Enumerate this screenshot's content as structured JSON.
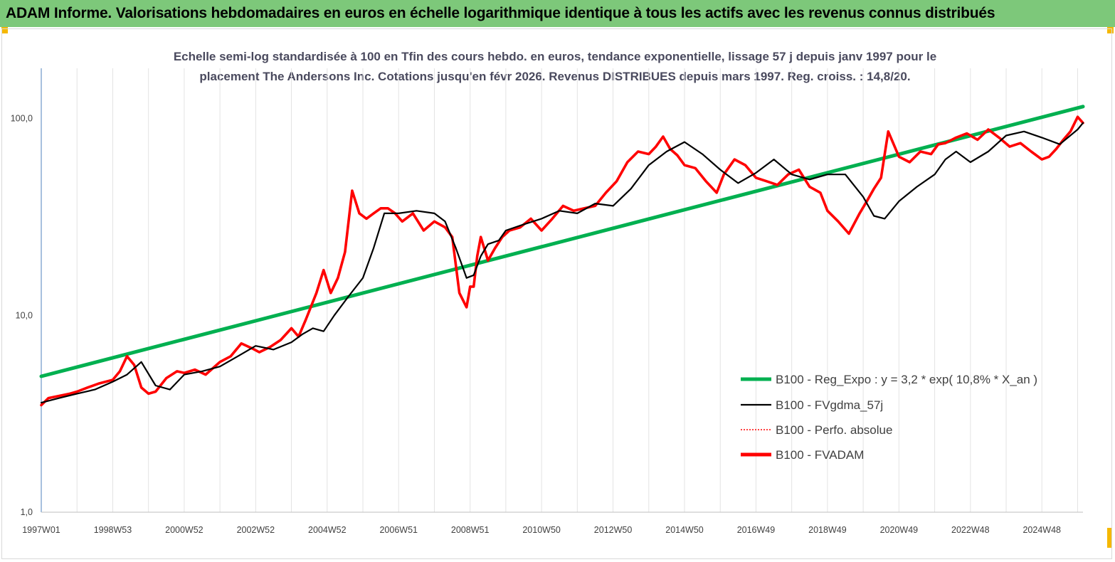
{
  "banner": {
    "title": "ADAM Informe. Valorisations hebdomadaires en euros en échelle logarithmique identique à tous les actifs avec les revenus connus distribués"
  },
  "colors": {
    "banner_bg": "#7dc87a",
    "corner_accent": "#f5b800"
  },
  "chart_data": {
    "type": "line",
    "title": "Echelle semi-log standardisée à 100 en Tfin des cours hebdo. en euros, tendance exponentielle, lissage 57 j depuis janv 1997 pour le",
    "subtitle": "placement The Andersons Inc. Cotations jusqu'en févr 2026.  Revenus DISTRIBUES depuis mars 1997. Reg. croiss. : 14,8/20.",
    "y_scale": "log",
    "ylim": [
      1,
      180
    ],
    "y_ticks": [
      "1,0",
      "10,0",
      "100,0"
    ],
    "x_range": [
      1997.0,
      2026.15
    ],
    "x_tick_labels": [
      "1997W01",
      "1998W53",
      "2000W52",
      "2002W52",
      "2004W52",
      "2006W51",
      "2008W51",
      "2010W50",
      "2012W50",
      "2014W50",
      "2016W49",
      "2018W49",
      "2020W49",
      "2022W48",
      "2024W48"
    ],
    "x_tick_positions": [
      1997.0,
      1999.0,
      2001.0,
      2003.0,
      2005.0,
      2007.0,
      2009.0,
      2011.0,
      2013.0,
      2015.0,
      2017.0,
      2019.0,
      2021.0,
      2023.0,
      2025.0
    ],
    "grid": "vertical",
    "legend_position": "bottom-right",
    "series": [
      {
        "name": "B100 - Reg_Expo : y = 3,2 * exp( 10,8% *  X_an )",
        "color": "#00b050",
        "style": "solid-thick",
        "x": [
          1997.0,
          2026.15
        ],
        "y": [
          4.9,
          115
        ]
      },
      {
        "name": "B100 - FVgdma_57j",
        "color": "#000000",
        "style": "solid-thin",
        "x": [
          1997.0,
          1997.5,
          1998.0,
          1998.5,
          1999.0,
          1999.4,
          1999.8,
          2000.2,
          2000.6,
          2001.0,
          2001.5,
          2002.0,
          2002.5,
          2003.0,
          2003.5,
          2004.0,
          2004.3,
          2004.6,
          2004.9,
          2005.2,
          2005.6,
          2006.0,
          2006.3,
          2006.6,
          2007.0,
          2007.5,
          2008.0,
          2008.3,
          2008.6,
          2008.9,
          2009.1,
          2009.3,
          2009.5,
          2009.8,
          2010.0,
          2010.5,
          2011.0,
          2011.5,
          2012.0,
          2012.5,
          2013.0,
          2013.5,
          2014.0,
          2014.5,
          2015.0,
          2015.5,
          2016.0,
          2016.5,
          2017.0,
          2017.5,
          2018.0,
          2018.5,
          2019.0,
          2019.5,
          2020.0,
          2020.3,
          2020.6,
          2021.0,
          2021.5,
          2022.0,
          2022.3,
          2022.6,
          2023.0,
          2023.5,
          2024.0,
          2024.5,
          2025.0,
          2025.5,
          2026.0,
          2026.15
        ],
        "y": [
          3.6,
          3.8,
          4.0,
          4.2,
          4.6,
          5.0,
          5.8,
          4.4,
          4.2,
          5.0,
          5.2,
          5.5,
          6.2,
          7.0,
          6.7,
          7.3,
          8.0,
          8.6,
          8.3,
          10.0,
          12.5,
          15.5,
          22,
          33,
          33,
          34,
          33,
          30,
          22,
          15.5,
          16,
          20,
          23,
          24,
          27,
          29,
          31,
          34,
          33,
          37,
          36,
          44,
          58,
          68,
          76,
          66,
          55,
          47,
          53,
          62,
          52,
          49,
          52,
          52,
          40,
          32,
          31,
          38,
          45,
          52,
          62,
          68,
          60,
          68,
          82,
          86,
          80,
          74,
          88,
          95
        ]
      },
      {
        "name": "B100 - Perfo. absolue",
        "color": "#ff0000",
        "style": "dotted",
        "x": [],
        "y": []
      },
      {
        "name": "B100 - FVADAM",
        "color": "#ff0000",
        "style": "solid-thick",
        "x": [
          1997.0,
          1997.2,
          1997.5,
          1997.8,
          1998.0,
          1998.3,
          1998.6,
          1999.0,
          1999.2,
          1999.4,
          1999.6,
          1999.8,
          2000.0,
          2000.2,
          2000.5,
          2000.8,
          2001.0,
          2001.3,
          2001.6,
          2002.0,
          2002.3,
          2002.6,
          2002.9,
          2003.1,
          2003.4,
          2003.7,
          2004.0,
          2004.2,
          2004.4,
          2004.7,
          2004.9,
          2005.1,
          2005.3,
          2005.5,
          2005.7,
          2005.9,
          2006.1,
          2006.3,
          2006.5,
          2006.7,
          2006.9,
          2007.1,
          2007.4,
          2007.7,
          2008.0,
          2008.3,
          2008.5,
          2008.7,
          2008.9,
          2009.0,
          2009.1,
          2009.2,
          2009.3,
          2009.5,
          2009.7,
          2009.9,
          2010.1,
          2010.4,
          2010.7,
          2011.0,
          2011.3,
          2011.6,
          2011.9,
          2012.2,
          2012.5,
          2012.8,
          2013.1,
          2013.4,
          2013.7,
          2014.0,
          2014.2,
          2014.4,
          2014.6,
          2014.8,
          2015.0,
          2015.3,
          2015.6,
          2015.9,
          2016.1,
          2016.4,
          2016.7,
          2017.0,
          2017.3,
          2017.6,
          2017.9,
          2018.2,
          2018.5,
          2018.8,
          2019.0,
          2019.3,
          2019.6,
          2019.9,
          2020.1,
          2020.3,
          2020.5,
          2020.7,
          2021.0,
          2021.3,
          2021.6,
          2021.9,
          2022.1,
          2022.3,
          2022.6,
          2022.9,
          2023.2,
          2023.5,
          2023.8,
          2024.1,
          2024.4,
          2024.7,
          2025.0,
          2025.2,
          2025.4,
          2025.6,
          2025.8,
          2026.0,
          2026.15
        ],
        "y": [
          3.5,
          3.8,
          3.9,
          4.0,
          4.1,
          4.3,
          4.5,
          4.7,
          5.2,
          6.2,
          5.6,
          4.3,
          4.0,
          4.1,
          4.8,
          5.2,
          5.1,
          5.3,
          5.0,
          5.8,
          6.2,
          7.2,
          6.8,
          6.5,
          6.9,
          7.5,
          8.6,
          7.8,
          9.5,
          13,
          17,
          13,
          15.5,
          21,
          43,
          33,
          31,
          33,
          35,
          35,
          33,
          30,
          33,
          27,
          30,
          28,
          25,
          13,
          11,
          14,
          14,
          20,
          25,
          19,
          22,
          25,
          27,
          28,
          31,
          27,
          31,
          36,
          34,
          35,
          36,
          42,
          48,
          60,
          68,
          66,
          72,
          81,
          70,
          65,
          58,
          56,
          48,
          42,
          52,
          62,
          58,
          50,
          48,
          46,
          52,
          55,
          45,
          42,
          34,
          30,
          26,
          33,
          38,
          44,
          50,
          86,
          64,
          60,
          68,
          66,
          74,
          75,
          80,
          84,
          78,
          88,
          80,
          72,
          75,
          68,
          62,
          64,
          70,
          78,
          86,
          102,
          95
        ]
      }
    ]
  },
  "legend": {
    "items": [
      "B100 - Reg_Expo : y = 3,2 * exp( 10,8% *  X_an )",
      "B100 - FVgdma_57j",
      "B100 - Perfo. absolue",
      "B100 - FVADAM"
    ]
  }
}
